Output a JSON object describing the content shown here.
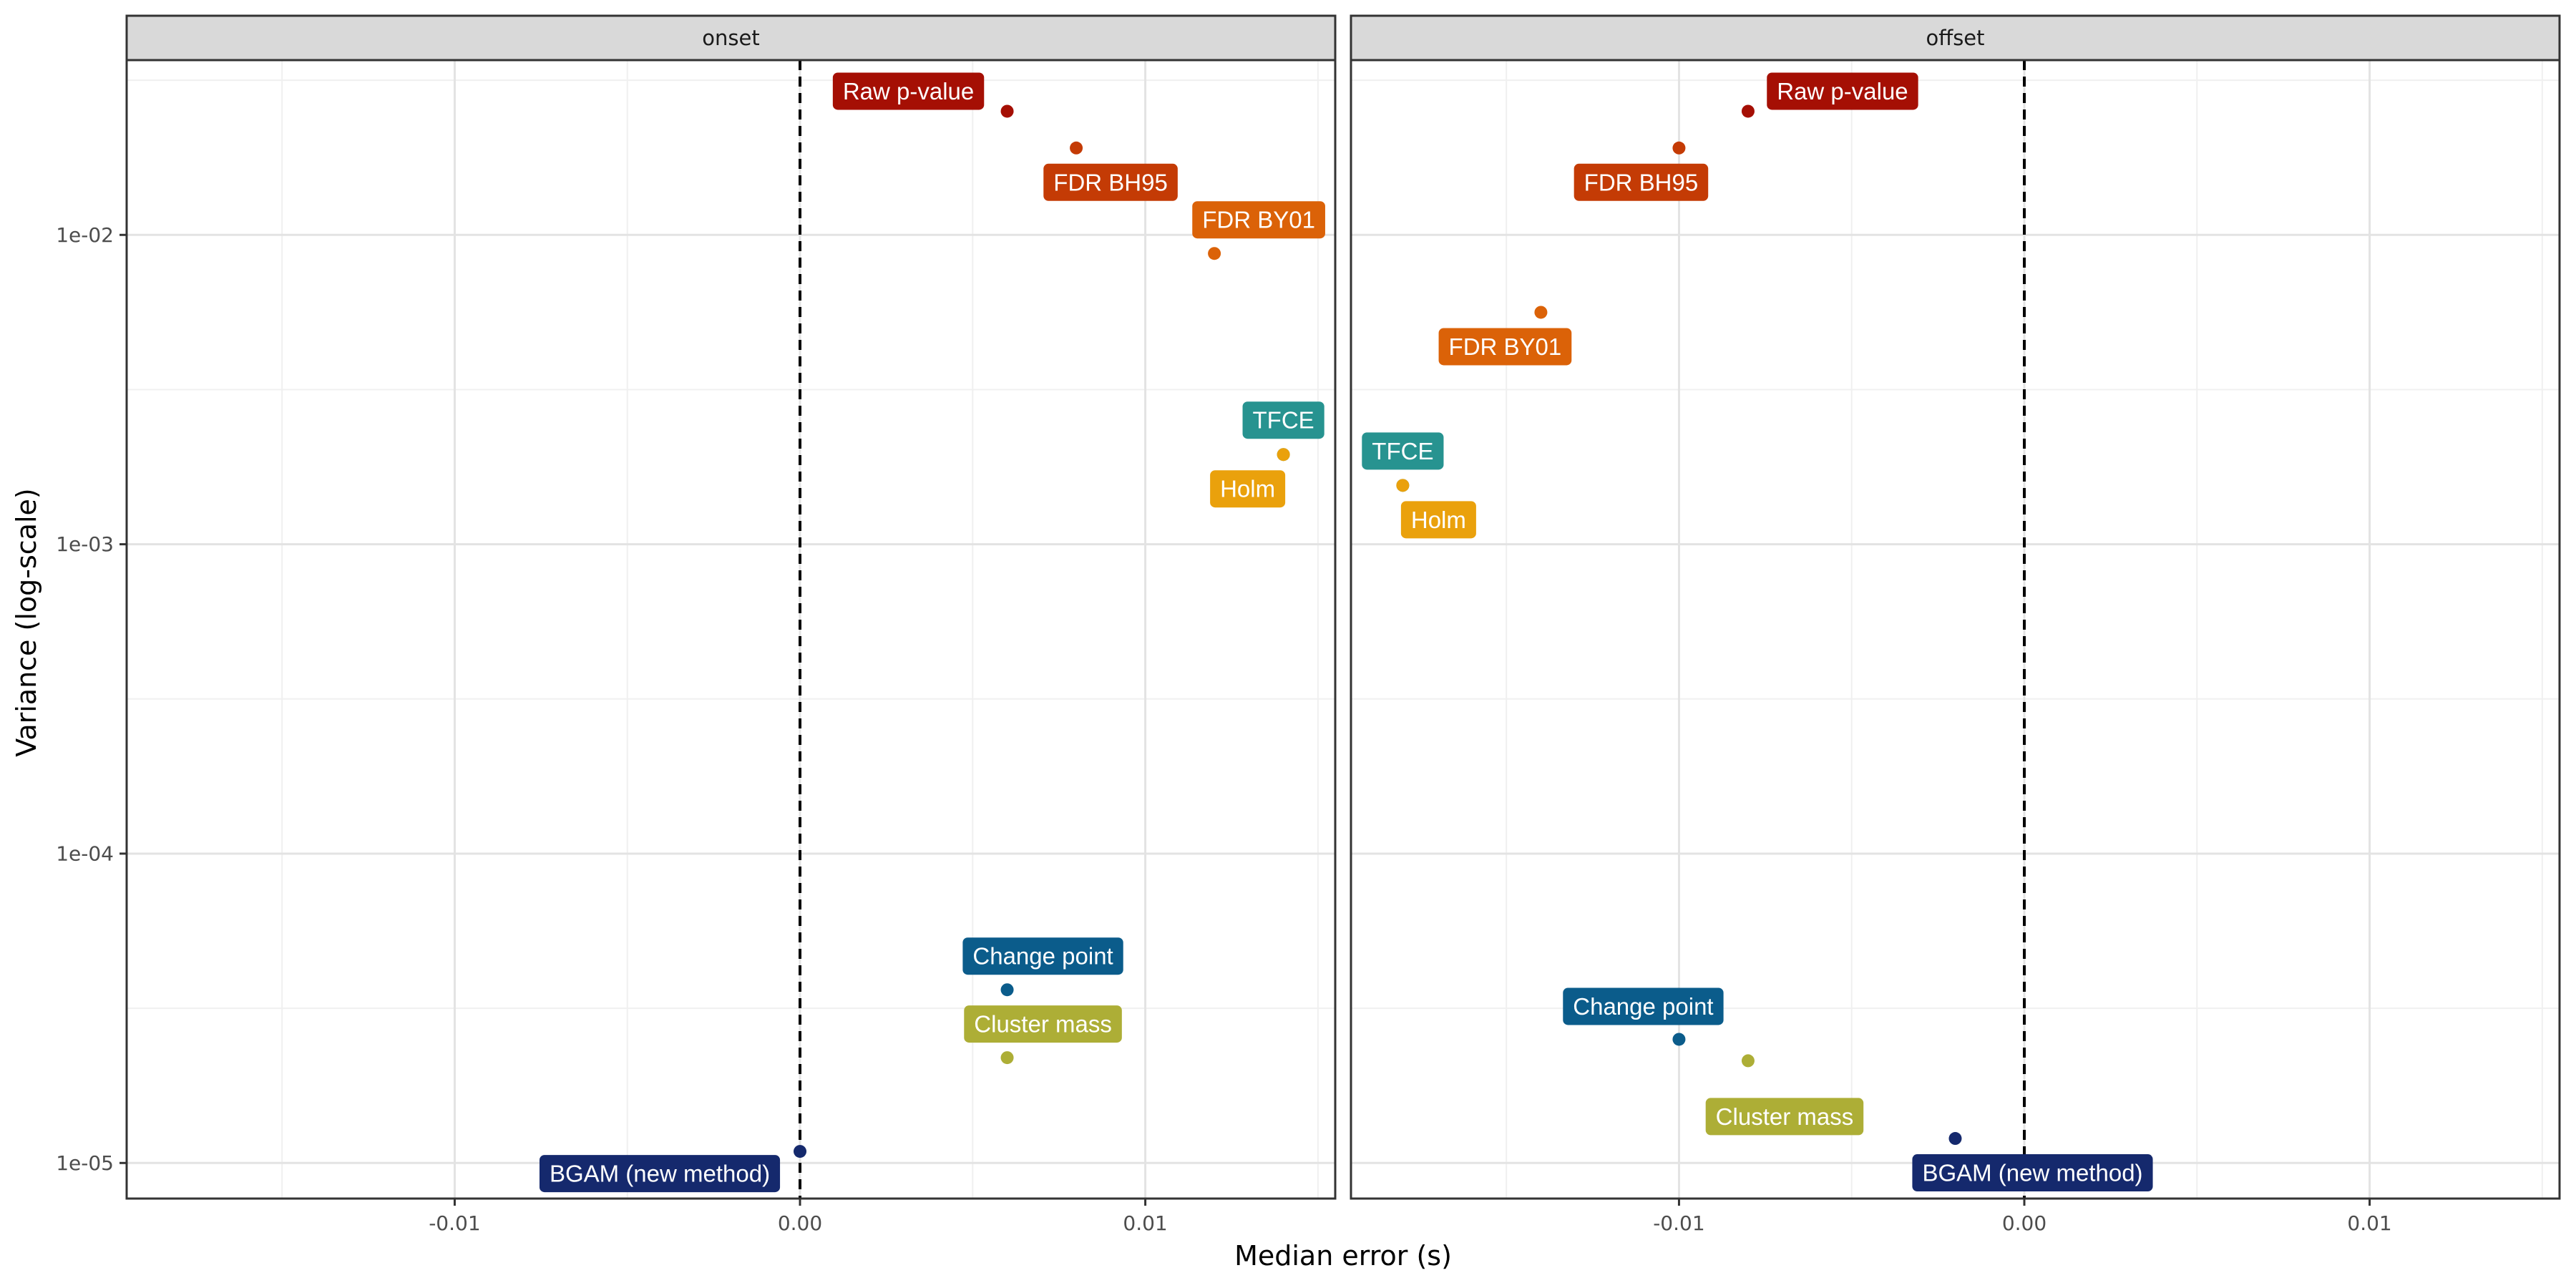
{
  "chart_data": {
    "type": "scatter",
    "title": "",
    "xlabel": "Median error (s)",
    "ylabel": "Variance (log-scale)",
    "y_scale": "log10",
    "xlim": [
      -0.0195,
      0.0155
    ],
    "ylim_log10": [
      -5.115,
      -1.435
    ],
    "x_ticks": [
      -0.01,
      0.0,
      0.01
    ],
    "x_tick_labels": [
      "-0.01",
      "0.00",
      "0.01"
    ],
    "y_ticks": [
      1e-05,
      0.0001,
      0.001,
      0.01
    ],
    "y_tick_labels": [
      "1e-05",
      "1e-04",
      "1e-03",
      "1e-02"
    ],
    "reference_line_x": 0,
    "grid": true,
    "legend": "none",
    "series_colors": {
      "Raw p-value": "#A50F04",
      "FDR BH95": "#C43B05",
      "FDR BY01": "#DB6208",
      "TFCE": "#279390",
      "Holm": "#EAA10C",
      "Change point": "#0B5C8B",
      "Cluster mass": "#ADAE36",
      "BGAM (new method)": "#15296D"
    },
    "panels": [
      {
        "name": "onset",
        "points": [
          {
            "label": "Raw p-value",
            "x": 0.006,
            "y": 0.0251
          },
          {
            "label": "FDR BH95",
            "x": 0.008,
            "y": 0.0191
          },
          {
            "label": "FDR BY01",
            "x": 0.012,
            "y": 0.00871
          },
          {
            "label": "TFCE",
            "x": 0.014,
            "y": 0.00195
          },
          {
            "label": "Holm",
            "x": 0.014,
            "y": 0.00195
          },
          {
            "label": "Change point",
            "x": 0.006,
            "y": 3.63e-05
          },
          {
            "label": "Cluster mass",
            "x": 0.006,
            "y": 2.19e-05
          },
          {
            "label": "BGAM (new method)",
            "x": 0.0,
            "y": 1.09e-05
          }
        ]
      },
      {
        "name": "offset",
        "points": [
          {
            "label": "Raw p-value",
            "x": -0.008,
            "y": 0.0251
          },
          {
            "label": "FDR BH95",
            "x": -0.01,
            "y": 0.0191
          },
          {
            "label": "FDR BY01",
            "x": -0.014,
            "y": 0.00562
          },
          {
            "label": "TFCE",
            "x": -0.018,
            "y": 0.00155
          },
          {
            "label": "Holm",
            "x": -0.018,
            "y": 0.00155
          },
          {
            "label": "Change point",
            "x": -0.01,
            "y": 2.51e-05
          },
          {
            "label": "Cluster mass",
            "x": -0.008,
            "y": 2.14e-05
          },
          {
            "label": "BGAM (new method)",
            "x": -0.002,
            "y": 1.2e-05
          }
        ]
      }
    ]
  }
}
